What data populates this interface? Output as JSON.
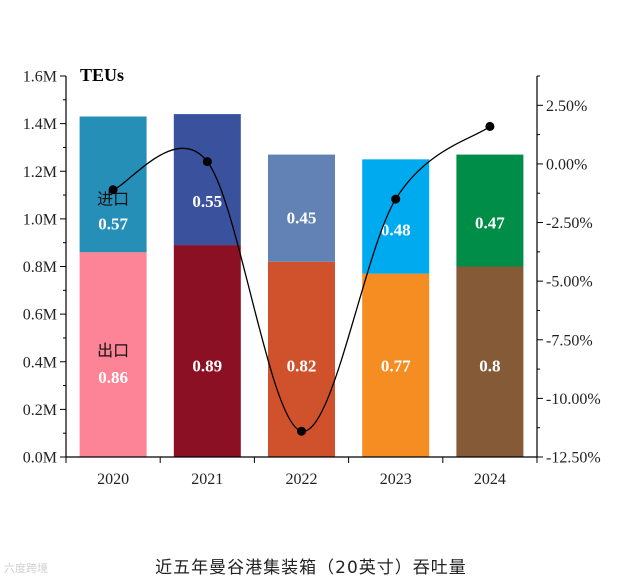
{
  "caption": "近五年曼谷港集装箱（20英寸）吞吐量",
  "watermark": "六度跨境",
  "chart_data": {
    "type": "bar",
    "stacked": true,
    "categories": [
      "2020",
      "2021",
      "2022",
      "2023",
      "2024"
    ],
    "unit_label": "TEUs",
    "ylim": [
      0,
      1.6
    ],
    "y_ticks": [
      "0.0M",
      "0.2M",
      "0.4M",
      "0.6M",
      "0.8M",
      "1.0M",
      "1.2M",
      "1.4M",
      "1.6M"
    ],
    "series": [
      {
        "name": "出口",
        "values": [
          0.86,
          0.89,
          0.82,
          0.77,
          0.8
        ],
        "labels": [
          "0.86",
          "0.89",
          "0.82",
          "0.77",
          "0.8"
        ],
        "colors": [
          "#fd8397",
          "#8c1024",
          "#d0522c",
          "#f68d23",
          "#855b37"
        ]
      },
      {
        "name": "进口",
        "values": [
          0.57,
          0.55,
          0.45,
          0.48,
          0.47
        ],
        "labels": [
          "0.57",
          "0.55",
          "0.45",
          "0.48",
          "0.47"
        ],
        "colors": [
          "#258fb8",
          "#3a529e",
          "#6282b5",
          "#00aaee",
          "#008d47"
        ]
      }
    ],
    "growth_line": {
      "y2lim": [
        -12.5,
        3.75
      ],
      "y2_ticks": [
        "2.50%",
        "0.00%",
        "-2.50%",
        "-5.00%",
        "-7.50%",
        "-10.00%",
        "-12.50%"
      ],
      "y2_tick_values": [
        2.5,
        0,
        -2.5,
        -5,
        -7.5,
        -10,
        -12.5
      ],
      "values": [
        -1.1,
        0.1,
        -11.4,
        -1.5,
        1.6
      ]
    },
    "legend": "inline labels inside first bar"
  }
}
